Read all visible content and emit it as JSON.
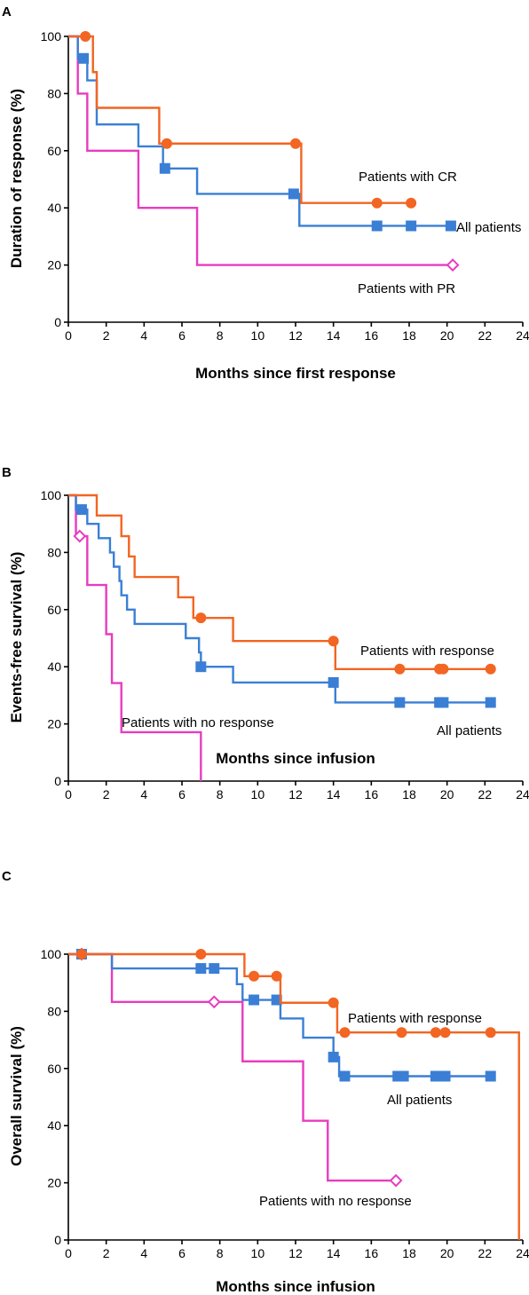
{
  "colors": {
    "cr": "#f26522",
    "all": "#3a7fd5",
    "pr": "#e83cbf"
  },
  "chart_data": [
    {
      "panel_letter": "A",
      "type": "line",
      "xlabel": "Months since first response",
      "ylabel": "Duration of response (%)",
      "xlim": [
        0,
        24
      ],
      "ylim": [
        0,
        100
      ],
      "xticks": [
        0,
        2,
        4,
        6,
        8,
        10,
        12,
        14,
        16,
        18,
        20,
        22,
        24
      ],
      "yticks": [
        0,
        20,
        40,
        60,
        80,
        100
      ],
      "series": [
        {
          "name": "All patients",
          "color_key": "all",
          "marker": "square",
          "steps": [
            [
              0,
              100
            ],
            [
              0.5,
              92.3
            ],
            [
              1.0,
              84.6
            ],
            [
              1.5,
              69.2
            ],
            [
              3.7,
              61.5
            ],
            [
              5.0,
              53.8
            ],
            [
              6.8,
              44.9
            ],
            [
              12.2,
              33.7
            ],
            [
              20.3,
              33.7
            ]
          ],
          "censored": [
            [
              0.8,
              92.3
            ],
            [
              5.1,
              53.8
            ],
            [
              11.9,
              44.9
            ],
            [
              16.3,
              33.7
            ],
            [
              18.1,
              33.7
            ],
            [
              20.2,
              33.7
            ]
          ]
        },
        {
          "name": "Patients with CR",
          "color_key": "cr",
          "marker": "circle",
          "steps": [
            [
              0,
              100
            ],
            [
              1.3,
              87.5
            ],
            [
              1.5,
              75
            ],
            [
              4.8,
              62.5
            ],
            [
              12.3,
              41.7
            ],
            [
              18.1,
              41.7
            ]
          ],
          "censored": [
            [
              0.9,
              100
            ],
            [
              5.2,
              62.5
            ],
            [
              12.0,
              62.5
            ],
            [
              16.3,
              41.7
            ],
            [
              18.1,
              41.7
            ]
          ]
        },
        {
          "name": "Patients with PR",
          "color_key": "pr",
          "marker": "open-diamond",
          "steps": [
            [
              0,
              100
            ],
            [
              0.5,
              80
            ],
            [
              1.0,
              60
            ],
            [
              3.7,
              40
            ],
            [
              6.8,
              20
            ],
            [
              20.3,
              20
            ]
          ],
          "censored": [
            [
              20.3,
              20
            ]
          ]
        }
      ]
    },
    {
      "panel_letter": "B",
      "type": "line",
      "xlabel": "Months since infusion",
      "ylabel": "Events-free survival (%)",
      "xlim": [
        0,
        24
      ],
      "ylim": [
        0,
        100
      ],
      "xticks": [
        0,
        2,
        4,
        6,
        8,
        10,
        12,
        14,
        16,
        18,
        20,
        22,
        24
      ],
      "yticks": [
        0,
        20,
        40,
        60,
        80,
        100
      ],
      "series": [
        {
          "name": "All patients",
          "color_key": "all",
          "marker": "square",
          "steps": [
            [
              0,
              100
            ],
            [
              0.4,
              95
            ],
            [
              1.0,
              90
            ],
            [
              1.6,
              85
            ],
            [
              2.2,
              80
            ],
            [
              2.4,
              75
            ],
            [
              2.7,
              70
            ],
            [
              2.8,
              65
            ],
            [
              3.1,
              60
            ],
            [
              3.5,
              55
            ],
            [
              6.2,
              50
            ],
            [
              6.9,
              45
            ],
            [
              7.0,
              40
            ],
            [
              8.7,
              34.5
            ],
            [
              14.1,
              27.5
            ],
            [
              22.3,
              27.5
            ]
          ],
          "censored": [
            [
              0.7,
              95
            ],
            [
              7.0,
              40
            ],
            [
              14.0,
              34.5
            ],
            [
              17.5,
              27.5
            ],
            [
              19.6,
              27.5
            ],
            [
              19.8,
              27.5
            ],
            [
              22.3,
              27.5
            ]
          ]
        },
        {
          "name": "Patients with response",
          "color_key": "cr",
          "marker": "circle",
          "steps": [
            [
              0,
              100
            ],
            [
              1.5,
              92.9
            ],
            [
              2.8,
              85.7
            ],
            [
              3.2,
              78.6
            ],
            [
              3.5,
              71.4
            ],
            [
              5.8,
              64.3
            ],
            [
              6.6,
              57.1
            ],
            [
              8.7,
              49
            ],
            [
              14.1,
              39.2
            ],
            [
              22.3,
              39.2
            ]
          ],
          "censored": [
            [
              7.0,
              57.1
            ],
            [
              14.0,
              49
            ],
            [
              17.5,
              39.2
            ],
            [
              19.6,
              39.2
            ],
            [
              19.8,
              39.2
            ],
            [
              22.3,
              39.2
            ]
          ]
        },
        {
          "name": "Patients with no response",
          "color_key": "pr",
          "marker": "open-diamond",
          "steps": [
            [
              0,
              100
            ],
            [
              0.4,
              85.7
            ],
            [
              1.0,
              68.6
            ],
            [
              2.0,
              51.4
            ],
            [
              2.3,
              34.3
            ],
            [
              2.8,
              17.1
            ],
            [
              7.0,
              0
            ]
          ],
          "censored": [
            [
              0.6,
              85.7
            ]
          ]
        }
      ]
    },
    {
      "panel_letter": "C",
      "type": "line",
      "xlabel": "Months since infusion",
      "ylabel": "Overall survival (%)",
      "xlim": [
        0,
        24
      ],
      "ylim": [
        0,
        100
      ],
      "xticks": [
        0,
        2,
        4,
        6,
        8,
        10,
        12,
        14,
        16,
        18,
        20,
        22,
        24
      ],
      "yticks": [
        0,
        20,
        40,
        60,
        80,
        100
      ],
      "series": [
        {
          "name": "All patients",
          "color_key": "all",
          "marker": "square",
          "steps": [
            [
              0,
              100
            ],
            [
              2.3,
              95
            ],
            [
              8.9,
              89.5
            ],
            [
              9.2,
              84
            ],
            [
              11.2,
              77.5
            ],
            [
              12.4,
              70.8
            ],
            [
              14.0,
              64
            ],
            [
              14.3,
              57.3
            ],
            [
              22.3,
              57.3
            ]
          ],
          "censored": [
            [
              0.7,
              100
            ],
            [
              7.0,
              95
            ],
            [
              7.7,
              95
            ],
            [
              9.8,
              84
            ],
            [
              11.0,
              84
            ],
            [
              14.0,
              64
            ],
            [
              14.6,
              57.3
            ],
            [
              17.4,
              57.3
            ],
            [
              17.7,
              57.3
            ],
            [
              19.4,
              57.3
            ],
            [
              19.6,
              57.3
            ],
            [
              19.9,
              57.3
            ],
            [
              22.3,
              57.3
            ]
          ]
        },
        {
          "name": "Patients with response",
          "color_key": "cr",
          "marker": "circle",
          "steps": [
            [
              0,
              100
            ],
            [
              9.3,
              92.3
            ],
            [
              11.2,
              83
            ],
            [
              14.2,
              72.6
            ],
            [
              23.8,
              0
            ]
          ],
          "censored": [
            [
              0.7,
              100
            ],
            [
              7.0,
              100
            ],
            [
              9.8,
              92.3
            ],
            [
              11.0,
              92.3
            ],
            [
              14.0,
              83
            ],
            [
              14.6,
              72.6
            ],
            [
              17.6,
              72.6
            ],
            [
              19.4,
              72.6
            ],
            [
              19.9,
              72.6
            ],
            [
              22.3,
              72.6
            ]
          ]
        },
        {
          "name": "Patients with no response",
          "color_key": "pr",
          "marker": "open-diamond",
          "steps": [
            [
              0,
              100
            ],
            [
              2.3,
              83.3
            ],
            [
              9.2,
              62.5
            ],
            [
              12.4,
              41.7
            ],
            [
              13.7,
              20.8
            ],
            [
              17.3,
              20.8
            ]
          ],
          "censored": [
            [
              0.7,
              100
            ],
            [
              7.7,
              83.3
            ],
            [
              17.3,
              20.8
            ]
          ]
        }
      ]
    }
  ]
}
